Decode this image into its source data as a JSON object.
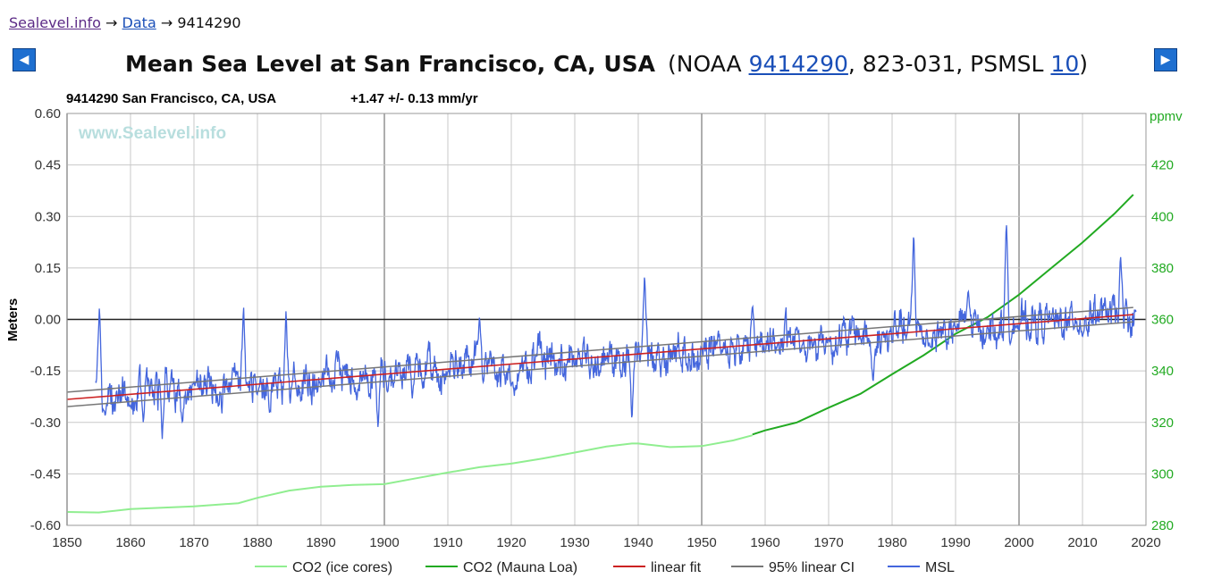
{
  "breadcrumb": {
    "site": "Sealevel.info",
    "arrow1": "→",
    "data": "Data",
    "arrow2": "→",
    "station": "9414290"
  },
  "header": {
    "title": "Mean Sea Level at San Francisco, CA, USA",
    "noaa_prefix": "(NOAA",
    "noaa_link": "9414290",
    "middle": ", 823-031, PSMSL",
    "psmsl_link": "10",
    "close": ")",
    "prev_icon": "◀",
    "next_icon": "▶"
  },
  "colors": {
    "msl": "#4466dd",
    "co2_ice": "#90ee90",
    "co2_ml": "#22aa22",
    "linear_fit": "#cc2222",
    "ci": "#777777",
    "ppmv_axis": "#22aa22",
    "grid": "#c8c8c8"
  },
  "chart_data": {
    "type": "line",
    "chart_title": "9414290 San Francisco, CA, USA",
    "trend_label": "+1.47 +/- 0.13 mm/yr",
    "watermark": "www.Sealevel.info",
    "ylabel": "Meters",
    "y2label": "ppmv",
    "xlim": [
      1850,
      2020
    ],
    "ylim": [
      -0.6,
      0.6
    ],
    "y2lim": [
      280,
      440
    ],
    "x_ticks": [
      "1850",
      "1860",
      "1870",
      "1880",
      "1890",
      "1900",
      "1910",
      "1920",
      "1930",
      "1940",
      "1950",
      "1960",
      "1970",
      "1980",
      "1990",
      "2000",
      "2010",
      "2020"
    ],
    "y_ticks": [
      "0.60",
      "0.45",
      "0.30",
      "0.15",
      "0.00",
      "-0.15",
      "-0.30",
      "-0.45",
      "-0.60"
    ],
    "y2_ticks": [
      "420",
      "400",
      "380",
      "360",
      "340",
      "320",
      "300",
      "280"
    ],
    "legend": [
      "CO2 (ice cores)",
      "CO2 (Mauna Loa)",
      "linear fit",
      "95% linear CI",
      "MSL"
    ],
    "legend_position": "bottom-center",
    "series": [
      {
        "name": "CO2 (ice cores)",
        "axis": "ppmv",
        "points": [
          [
            1850,
            285.2
          ],
          [
            1855,
            285.0
          ],
          [
            1860,
            286.3
          ],
          [
            1870,
            287.4
          ],
          [
            1877,
            288.6
          ],
          [
            1880,
            290.7
          ],
          [
            1885,
            293.5
          ],
          [
            1890,
            295.0
          ],
          [
            1895,
            295.7
          ],
          [
            1900,
            296.0
          ],
          [
            1905,
            298.3
          ],
          [
            1910,
            300.5
          ],
          [
            1915,
            302.6
          ],
          [
            1920,
            304.0
          ],
          [
            1925,
            306.0
          ],
          [
            1930,
            308.3
          ],
          [
            1935,
            310.6
          ],
          [
            1939,
            311.8
          ],
          [
            1940,
            311.8
          ],
          [
            1945,
            310.4
          ],
          [
            1950,
            310.8
          ],
          [
            1955,
            313.0
          ],
          [
            1958,
            315.0
          ]
        ]
      },
      {
        "name": "CO2 (Mauna Loa)",
        "axis": "ppmv",
        "points": [
          [
            1958,
            315.3
          ],
          [
            1960,
            316.9
          ],
          [
            1965,
            320.0
          ],
          [
            1970,
            325.7
          ],
          [
            1975,
            331.1
          ],
          [
            1980,
            338.7
          ],
          [
            1985,
            346.1
          ],
          [
            1990,
            354.4
          ],
          [
            1995,
            360.8
          ],
          [
            2000,
            369.6
          ],
          [
            2005,
            379.8
          ],
          [
            2010,
            389.9
          ],
          [
            2015,
            401.0
          ],
          [
            2018,
            408.5
          ]
        ]
      },
      {
        "name": "linear fit",
        "axis": "meters",
        "points": [
          [
            1850,
            -0.233
          ],
          [
            2018,
            0.014
          ]
        ]
      },
      {
        "name": "95% linear CI",
        "axis": "meters",
        "points_upper": [
          [
            1850,
            -0.212
          ],
          [
            2018,
            0.035
          ]
        ],
        "points_lower": [
          [
            1850,
            -0.254
          ],
          [
            2018,
            -0.007
          ]
        ]
      },
      {
        "name": "MSL",
        "axis": "meters",
        "start_year": 1854.5,
        "end_year": 2018.5,
        "step_years": 0.0833,
        "note": "monthly mean sea level, approx -0.36 to 0.29 m, peaks 1855 0.04, 1878 0.05, 1884 0.03, 1941 0.14, 1983 0.26, 1998 0.29, 2016 0.19",
        "key_points": [
          [
            1854.5,
            -0.18
          ],
          [
            1855.1,
            0.04
          ],
          [
            1856,
            -0.28
          ],
          [
            1860,
            -0.25
          ],
          [
            1862,
            -0.3
          ],
          [
            1865,
            -0.35
          ],
          [
            1870,
            -0.18
          ],
          [
            1877.8,
            0.05
          ],
          [
            1880,
            -0.22
          ],
          [
            1884.5,
            0.03
          ],
          [
            1890,
            -0.2
          ],
          [
            1899,
            -0.32
          ],
          [
            1910,
            -0.15
          ],
          [
            1915,
            0.01
          ],
          [
            1920,
            -0.2
          ],
          [
            1930,
            -0.14
          ],
          [
            1939,
            -0.3
          ],
          [
            1941,
            0.14
          ],
          [
            1950,
            -0.08
          ],
          [
            1958,
            0.05
          ],
          [
            1960,
            -0.1
          ],
          [
            1965,
            -0.02
          ],
          [
            1970,
            -0.06
          ],
          [
            1977,
            -0.19
          ],
          [
            1983.4,
            0.26
          ],
          [
            1986,
            -0.08
          ],
          [
            1990,
            -0.02
          ],
          [
            1992,
            0.09
          ],
          [
            1995,
            -0.02
          ],
          [
            1998,
            0.29
          ],
          [
            2000,
            -0.04
          ],
          [
            2005,
            0.0
          ],
          [
            2010,
            -0.05
          ],
          [
            2016,
            0.19
          ],
          [
            2018.5,
            0.02
          ]
        ]
      }
    ]
  }
}
